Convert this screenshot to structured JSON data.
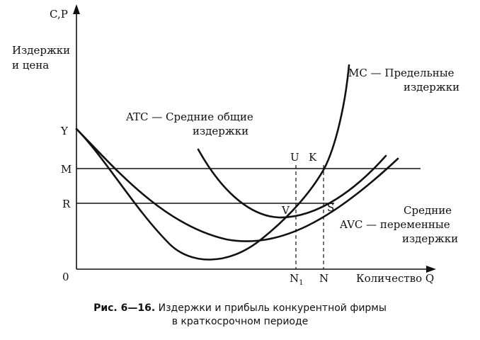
{
  "chart_data": {
    "type": "line",
    "y_axis_label": "C,P",
    "y_axis_title": [
      "Издержки",
      "и цена"
    ],
    "x_axis_label": "Количество Q",
    "origin_label": "0",
    "y_levels": [
      {
        "label": "Y"
      },
      {
        "label": "M"
      },
      {
        "label": "R"
      }
    ],
    "x_marks": [
      {
        "label": "N",
        "sub": "1"
      },
      {
        "label": "N",
        "sub": ""
      }
    ],
    "points": [
      "U",
      "K",
      "V",
      "S"
    ],
    "series": [
      {
        "name": "MC",
        "caption": [
          "MC — Предельные",
          "издержки"
        ]
      },
      {
        "name": "ATC",
        "caption": [
          "ATC — Средние общие",
          "издержки"
        ]
      },
      {
        "name": "AVC",
        "caption": [
          "Средние",
          "AVC — переменные",
          "издержки"
        ]
      }
    ]
  },
  "caption": {
    "number": "Рис. 6—16.",
    "line1": "Издержки и прибыль конкурентной фирмы",
    "line2": "в краткосрочном периоде"
  }
}
